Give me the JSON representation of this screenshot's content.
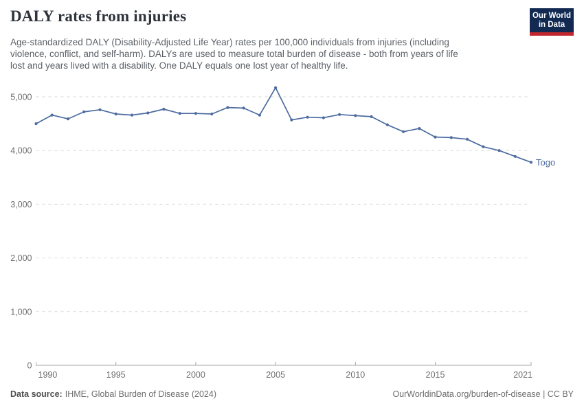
{
  "header": {
    "title": "DALY rates from injuries",
    "subtitle_lines": [
      "Age-standardized DALY (Disability-Adjusted Life Year) rates per 100,000 individuals from injuries (including",
      "violence, conflict, and self-harm). DALYs are used to measure total burden of disease - both from years of life",
      "lost and years lived with a disability. One DALY equals one lost year of healthy life."
    ]
  },
  "logo": {
    "line1": "Our World",
    "line2": "in Data"
  },
  "footer": {
    "datasource_label": "Data source:",
    "datasource_value": "IHME, Global Burden of Disease (2024)",
    "credit": "OurWorldinData.org/burden-of-disease | CC BY"
  },
  "colors": {
    "line": "#4c6ba0",
    "grid": "#d7d7d7",
    "axis": "#a5a5a5",
    "tick_label": "#6e6e6e",
    "title": "#2e333b",
    "subtitle": "#5b6066",
    "footer": "#6d6d6d",
    "logo_bg": "#122a52",
    "logo_stripe": "#c0272d"
  },
  "chart_data": {
    "type": "line",
    "title": "DALY rates from injuries",
    "x": [
      1990,
      1991,
      1992,
      1993,
      1994,
      1995,
      1996,
      1997,
      1998,
      1999,
      2000,
      2001,
      2002,
      2003,
      2004,
      2005,
      2006,
      2007,
      2008,
      2009,
      2010,
      2011,
      2012,
      2013,
      2014,
      2015,
      2016,
      2017,
      2018,
      2019,
      2020,
      2021
    ],
    "series": [
      {
        "name": "Togo",
        "color": "#4c6ba0",
        "values": [
          4500,
          4660,
          4590,
          4720,
          4760,
          4680,
          4660,
          4700,
          4770,
          4690,
          4690,
          4680,
          4800,
          4790,
          4660,
          5170,
          4570,
          4620,
          4610,
          4670,
          4650,
          4630,
          4480,
          4350,
          4410,
          4250,
          4240,
          4210,
          4070,
          4000,
          3890,
          3780
        ]
      }
    ],
    "xlim": [
      1990,
      2021
    ],
    "ylim": [
      0,
      5000
    ],
    "x_ticks": {
      "values": [
        1990,
        1995,
        2000,
        2005,
        2010,
        2015,
        2021
      ],
      "labels": [
        "1990",
        "1995",
        "2000",
        "2005",
        "2010",
        "2015",
        "2021"
      ]
    },
    "y_ticks": {
      "values": [
        0,
        1000,
        2000,
        3000,
        4000,
        5000
      ],
      "labels": [
        "0",
        "1,000",
        "2,000",
        "3,000",
        "4,000",
        "5,000"
      ]
    },
    "grid": "horizontal-dashed",
    "legend_position": "line-end-label",
    "entity_label": "Togo"
  }
}
